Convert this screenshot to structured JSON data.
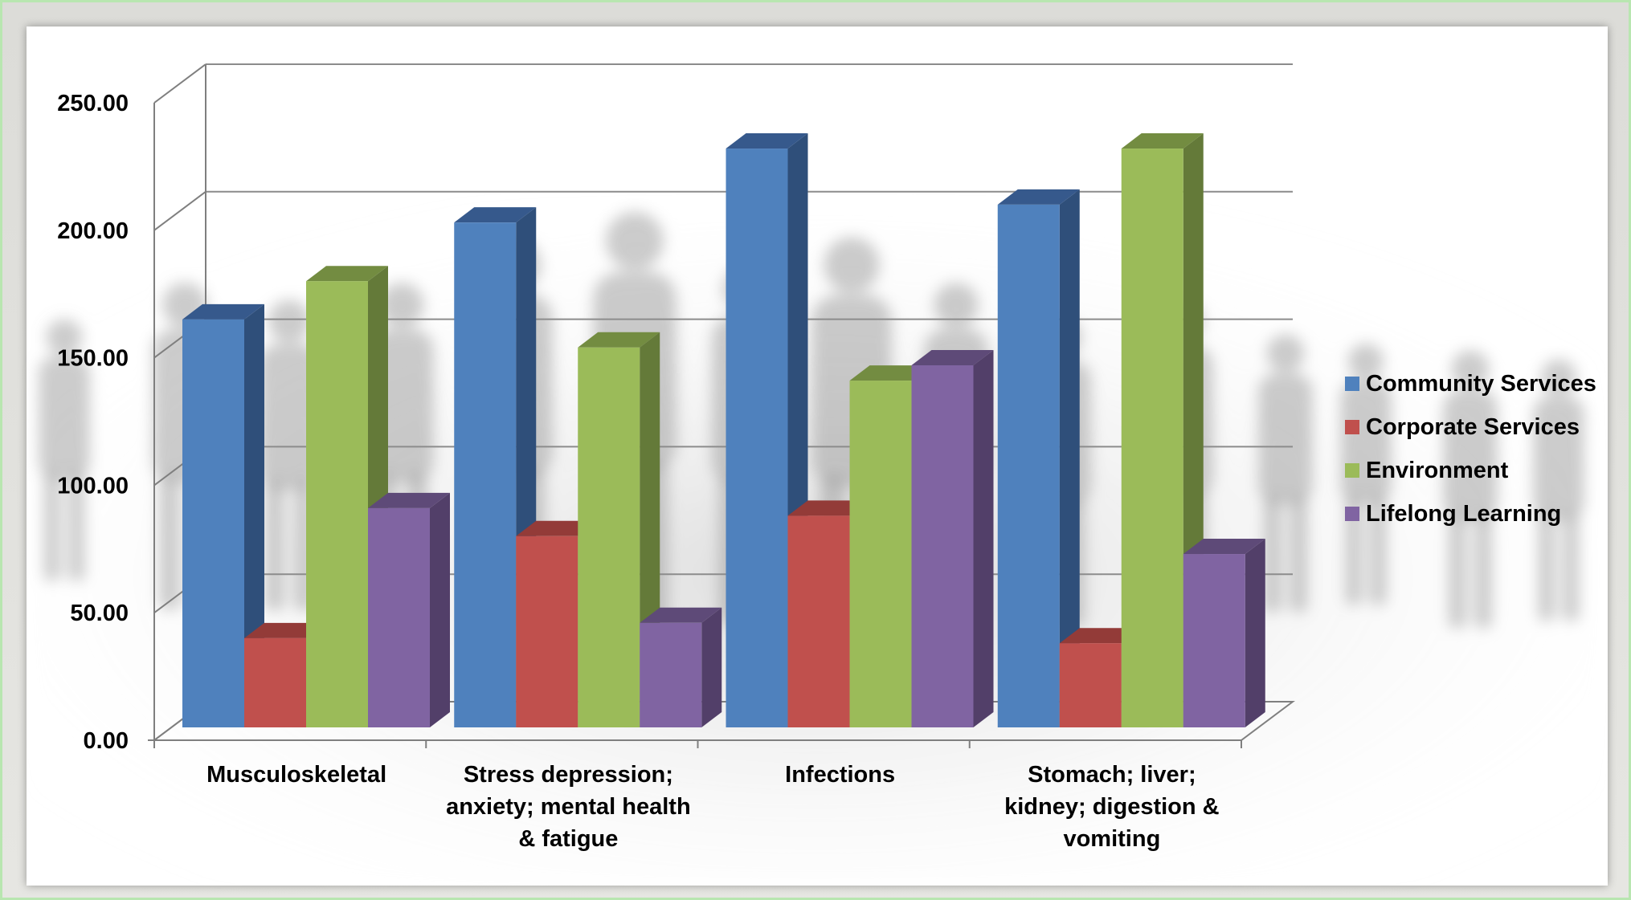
{
  "chart_data": {
    "type": "bar",
    "style": "3d-clustered-column",
    "title": "",
    "xlabel": "",
    "ylabel": "",
    "ylim": [
      0,
      250
    ],
    "yticks": [
      "0.00",
      "50.00",
      "100.00",
      "150.00",
      "200.00",
      "250.00"
    ],
    "ytick_values": [
      0,
      50,
      100,
      150,
      200,
      250
    ],
    "grid": true,
    "legend_position": "right",
    "categories": [
      [
        "Musculoskeletal"
      ],
      [
        "Stress depression;",
        "anxiety; mental health",
        "& fatigue"
      ],
      [
        "Infections"
      ],
      [
        "Stomach; liver;",
        "kidney; digestion &",
        "vomiting"
      ]
    ],
    "series": [
      {
        "name": "Community Services",
        "values": [
          160,
          198,
          227,
          205
        ],
        "color": "#4f81bd",
        "side": "#2f4f7a",
        "top": "#36598c"
      },
      {
        "name": "Corporate Services",
        "values": [
          35,
          75,
          83,
          33
        ],
        "color": "#c0504d",
        "side": "#7f3432",
        "top": "#933b38"
      },
      {
        "name": "Environment",
        "values": [
          175,
          149,
          136,
          227
        ],
        "color": "#9bbb59",
        "side": "#647a39",
        "top": "#738c41"
      },
      {
        "name": "Lifelong Learning",
        "values": [
          86,
          41,
          142,
          68
        ],
        "color": "#8064a2",
        "side": "#523f69",
        "top": "#5e4a78"
      }
    ]
  }
}
